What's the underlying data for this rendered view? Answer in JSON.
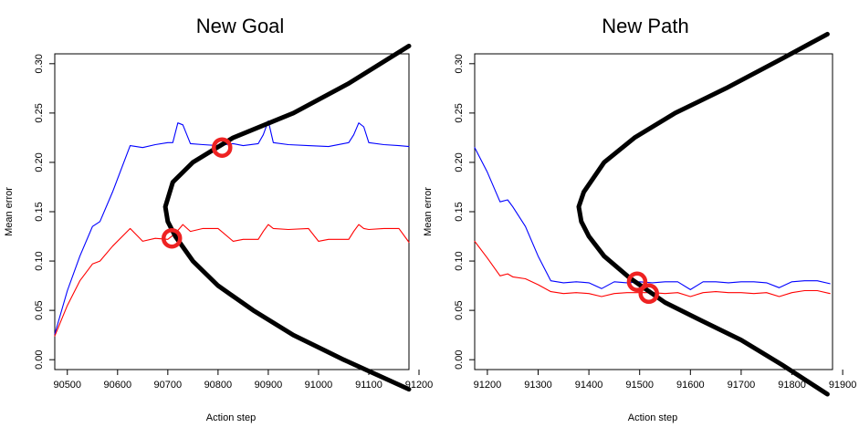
{
  "chart_data": [
    {
      "type": "line",
      "title": "New Goal",
      "xlabel": "Action step",
      "ylabel": "Mean error",
      "xlim": [
        90475,
        91180
      ],
      "ylim": [
        -0.01,
        0.31
      ],
      "xticks": [
        90500,
        90600,
        90700,
        90800,
        90900,
        91000,
        91100,
        91200
      ],
      "yticks": [
        0.0,
        0.05,
        0.1,
        0.15,
        0.2,
        0.25,
        0.3
      ],
      "xtick_labels": [
        "90500",
        "90600",
        "90700",
        "90800",
        "90900",
        "91000",
        "91100",
        "91200"
      ],
      "ytick_labels": [
        "0.00",
        "0.05",
        "0.10",
        "0.15",
        "0.20",
        "0.25",
        "0.30"
      ],
      "grid": false,
      "series": [
        {
          "color": "#0000ff",
          "x": [
            90475,
            90500,
            90525,
            90550,
            90565,
            90590,
            90625,
            90650,
            90675,
            90700,
            90710,
            90720,
            90730,
            90745,
            90770,
            90800,
            90830,
            90850,
            90880,
            90890,
            90900,
            90910,
            90940,
            90980,
            91020,
            91060,
            91070,
            91080,
            91090,
            91100,
            91130,
            91160,
            91180
          ],
          "y": [
            0.026,
            0.07,
            0.105,
            0.135,
            0.14,
            0.17,
            0.217,
            0.215,
            0.218,
            0.22,
            0.22,
            0.24,
            0.238,
            0.219,
            0.218,
            0.217,
            0.219,
            0.217,
            0.219,
            0.228,
            0.242,
            0.22,
            0.218,
            0.217,
            0.216,
            0.22,
            0.228,
            0.24,
            0.236,
            0.22,
            0.218,
            0.217,
            0.216
          ]
        },
        {
          "color": "#ff0000",
          "x": [
            90475,
            90500,
            90525,
            90550,
            90565,
            90590,
            90625,
            90650,
            90675,
            90700,
            90715,
            90730,
            90745,
            90770,
            90800,
            90830,
            90850,
            90880,
            90890,
            90900,
            90910,
            90940,
            90980,
            91000,
            91020,
            91060,
            91070,
            91080,
            91090,
            91100,
            91130,
            91160,
            91180
          ],
          "y": [
            0.024,
            0.055,
            0.08,
            0.097,
            0.1,
            0.115,
            0.133,
            0.12,
            0.123,
            0.122,
            0.128,
            0.137,
            0.13,
            0.133,
            0.133,
            0.12,
            0.122,
            0.122,
            0.13,
            0.137,
            0.133,
            0.132,
            0.133,
            0.12,
            0.122,
            0.122,
            0.13,
            0.137,
            0.133,
            0.132,
            0.133,
            0.133,
            0.119
          ]
        },
        {
          "color": "#000000",
          "x": [
            91180,
            91050,
            90950,
            90870,
            90800,
            90750,
            90715,
            90700,
            90695,
            90710,
            90750,
            90830,
            90950,
            91060,
            91180
          ],
          "y": [
            -0.03,
            0.0,
            0.025,
            0.05,
            0.075,
            0.1,
            0.125,
            0.14,
            0.155,
            0.18,
            0.2,
            0.225,
            0.25,
            0.28,
            0.318
          ]
        }
      ],
      "markers": [
        {
          "x": 90808,
          "y": 0.215,
          "color": "#ee2222"
        },
        {
          "x": 90708,
          "y": 0.123,
          "color": "#ee2222"
        }
      ]
    },
    {
      "type": "line",
      "title": "New Path",
      "xlabel": "Action step",
      "ylabel": "Mean error",
      "xlim": [
        91175,
        91880
      ],
      "ylim": [
        -0.01,
        0.31
      ],
      "xticks": [
        91200,
        91300,
        91400,
        91500,
        91600,
        91700,
        91800,
        91900
      ],
      "yticks": [
        0.0,
        0.05,
        0.1,
        0.15,
        0.2,
        0.25,
        0.3
      ],
      "xtick_labels": [
        "91200",
        "91300",
        "91400",
        "91500",
        "91600",
        "91700",
        "91800",
        "91900"
      ],
      "ytick_labels": [
        "0.00",
        "0.05",
        "0.10",
        "0.15",
        "0.20",
        "0.25",
        "0.30"
      ],
      "grid": false,
      "series": [
        {
          "color": "#0000ff",
          "x": [
            91175,
            91200,
            91225,
            91240,
            91250,
            91275,
            91300,
            91325,
            91350,
            91375,
            91400,
            91425,
            91450,
            91475,
            91500,
            91525,
            91550,
            91575,
            91600,
            91625,
            91650,
            91675,
            91700,
            91725,
            91750,
            91775,
            91800,
            91825,
            91850,
            91875
          ],
          "y": [
            0.215,
            0.19,
            0.16,
            0.162,
            0.155,
            0.135,
            0.105,
            0.08,
            0.078,
            0.079,
            0.078,
            0.072,
            0.079,
            0.078,
            0.079,
            0.078,
            0.079,
            0.079,
            0.071,
            0.079,
            0.079,
            0.078,
            0.079,
            0.079,
            0.078,
            0.073,
            0.079,
            0.08,
            0.08,
            0.077
          ]
        },
        {
          "color": "#ff0000",
          "x": [
            91175,
            91200,
            91225,
            91240,
            91250,
            91275,
            91300,
            91325,
            91350,
            91375,
            91400,
            91425,
            91450,
            91475,
            91500,
            91525,
            91550,
            91575,
            91600,
            91625,
            91650,
            91675,
            91700,
            91725,
            91750,
            91775,
            91800,
            91825,
            91850,
            91875
          ],
          "y": [
            0.12,
            0.103,
            0.085,
            0.087,
            0.084,
            0.082,
            0.076,
            0.069,
            0.067,
            0.068,
            0.067,
            0.064,
            0.067,
            0.068,
            0.068,
            0.068,
            0.067,
            0.068,
            0.064,
            0.068,
            0.069,
            0.068,
            0.068,
            0.067,
            0.068,
            0.064,
            0.068,
            0.07,
            0.07,
            0.067
          ]
        },
        {
          "color": "#000000",
          "x": [
            91870,
            91780,
            91700,
            91620,
            91550,
            91480,
            91430,
            91400,
            91385,
            91380,
            91390,
            91430,
            91490,
            91570,
            91670,
            91780,
            91870
          ],
          "y": [
            -0.035,
            -0.005,
            0.02,
            0.04,
            0.058,
            0.083,
            0.105,
            0.125,
            0.14,
            0.155,
            0.17,
            0.2,
            0.225,
            0.25,
            0.275,
            0.305,
            0.33
          ]
        }
      ],
      "markers": [
        {
          "x": 91495,
          "y": 0.079,
          "color": "#ee2222"
        },
        {
          "x": 91518,
          "y": 0.067,
          "color": "#ee2222"
        }
      ]
    }
  ]
}
